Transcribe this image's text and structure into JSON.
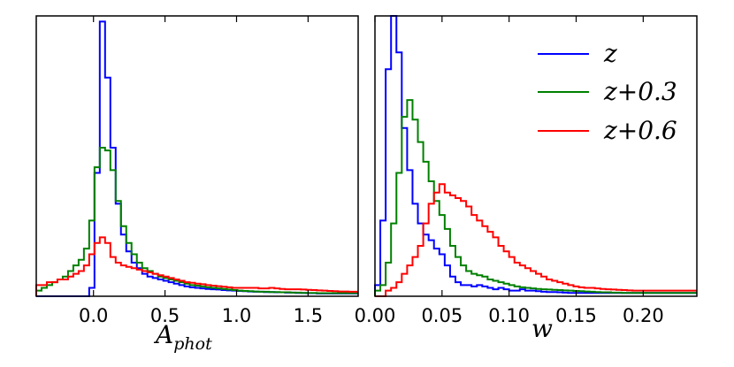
{
  "chart_data": [
    {
      "type": "histogram",
      "panel": "left",
      "xlabel": "A",
      "xlabel_sub": "phot",
      "ylabel": "",
      "xlim": [
        -0.4,
        1.85
      ],
      "ylim": [
        0,
        1.0
      ],
      "xticks": [
        "0.0",
        "0.5",
        "1.0",
        "1.5"
      ],
      "xtick_values": [
        0.0,
        0.5,
        1.0,
        1.5
      ],
      "bin_start": -0.4,
      "bin_width": 0.037,
      "series": [
        {
          "name": "z",
          "color": "#0000ff",
          "values": [
            0,
            0,
            0,
            0,
            0,
            0,
            0,
            0,
            0,
            0,
            0.03,
            0.44,
            0.98,
            0.78,
            0.53,
            0.33,
            0.22,
            0.16,
            0.12,
            0.1,
            0.08,
            0.07,
            0.065,
            0.06,
            0.055,
            0.05,
            0.045,
            0.04,
            0.035,
            0.032,
            0.03,
            0.028,
            0.026,
            0.025,
            0.024,
            0.022,
            0.021,
            0.02,
            0.019,
            0.018,
            0.017,
            0.016,
            0.016,
            0.015,
            0.015,
            0.014,
            0.014,
            0.013,
            0.013,
            0.012,
            0.012,
            0.011,
            0.011,
            0.01,
            0.01,
            0.01,
            0.01,
            0.01,
            0.01,
            0.01,
            0.01
          ]
        },
        {
          "name": "z+0.3",
          "color": "#008000",
          "values": [
            0.02,
            0.03,
            0.04,
            0.05,
            0.06,
            0.07,
            0.09,
            0.11,
            0.13,
            0.17,
            0.27,
            0.46,
            0.53,
            0.52,
            0.45,
            0.34,
            0.25,
            0.19,
            0.15,
            0.12,
            0.1,
            0.09,
            0.08,
            0.07,
            0.065,
            0.06,
            0.055,
            0.05,
            0.045,
            0.04,
            0.038,
            0.035,
            0.032,
            0.03,
            0.028,
            0.026,
            0.024,
            0.022,
            0.02,
            0.019,
            0.018,
            0.017,
            0.016,
            0.016,
            0.015,
            0.015,
            0.014,
            0.014,
            0.013,
            0.013,
            0.012,
            0.012,
            0.012,
            0.011,
            0.011,
            0.011,
            0.011,
            0.011,
            0.011,
            0.011,
            0.011
          ]
        },
        {
          "name": "z+0.6",
          "color": "#ff0000",
          "values": [
            0.04,
            0.04,
            0.05,
            0.05,
            0.06,
            0.06,
            0.07,
            0.08,
            0.09,
            0.11,
            0.15,
            0.19,
            0.21,
            0.19,
            0.14,
            0.12,
            0.11,
            0.105,
            0.1,
            0.095,
            0.09,
            0.085,
            0.08,
            0.075,
            0.07,
            0.065,
            0.06,
            0.055,
            0.05,
            0.048,
            0.045,
            0.043,
            0.04,
            0.038,
            0.036,
            0.034,
            0.032,
            0.03,
            0.03,
            0.03,
            0.03,
            0.03,
            0.028,
            0.028,
            0.03,
            0.028,
            0.026,
            0.025,
            0.025,
            0.025,
            0.024,
            0.023,
            0.022,
            0.021,
            0.02,
            0.019,
            0.018,
            0.017,
            0.017,
            0.016,
            0.016
          ]
        }
      ]
    },
    {
      "type": "histogram",
      "panel": "right",
      "xlabel": "w",
      "ylabel": "",
      "xlim": [
        0.0,
        0.24
      ],
      "ylim": [
        0,
        1.0
      ],
      "xticks": [
        "0.00",
        "0.05",
        "0.10",
        "0.15",
        "0.20"
      ],
      "xtick_values": [
        0.0,
        0.05,
        0.1,
        0.15,
        0.2
      ],
      "legend": {
        "position": "upper right",
        "labels": [
          "z",
          "z+0.3",
          "z+0.6"
        ]
      },
      "bin_start": 0.0,
      "bin_width": 0.004,
      "series": [
        {
          "name": "z",
          "color": "#0000ff",
          "values": [
            0.04,
            0.27,
            0.81,
            1.0,
            0.87,
            0.6,
            0.45,
            0.33,
            0.26,
            0.22,
            0.2,
            0.17,
            0.15,
            0.11,
            0.07,
            0.05,
            0.04,
            0.04,
            0.035,
            0.04,
            0.035,
            0.03,
            0.025,
            0.03,
            0.025,
            0.02,
            0.02,
            0.025,
            0.02,
            0.02,
            0.018,
            0.016,
            0.015,
            0.015,
            0.014,
            0.013,
            0.012,
            0.012,
            0.012,
            0.012,
            0.012,
            0.012,
            0.012,
            0.012,
            0.012,
            0.012,
            0.012,
            0.012,
            0.012,
            0.012,
            0.012,
            0.012,
            0.012,
            0.012,
            0.012,
            0.012,
            0.012,
            0.012,
            0.012,
            0.012
          ]
        },
        {
          "name": "z+0.3",
          "color": "#008000",
          "values": [
            0.02,
            0.04,
            0.12,
            0.26,
            0.44,
            0.64,
            0.7,
            0.63,
            0.55,
            0.48,
            0.41,
            0.34,
            0.29,
            0.24,
            0.18,
            0.14,
            0.11,
            0.09,
            0.08,
            0.075,
            0.07,
            0.06,
            0.055,
            0.05,
            0.045,
            0.04,
            0.035,
            0.032,
            0.03,
            0.028,
            0.026,
            0.025,
            0.024,
            0.023,
            0.022,
            0.021,
            0.02,
            0.019,
            0.018,
            0.017,
            0.016,
            0.015,
            0.014,
            0.014,
            0.013,
            0.013,
            0.012,
            0.012,
            0.012,
            0.012,
            0.012,
            0.012,
            0.012,
            0.012,
            0.012,
            0.012,
            0.012,
            0.012,
            0.012,
            0.012
          ]
        },
        {
          "name": "z+0.6",
          "color": "#ff0000",
          "values": [
            0,
            0,
            0.02,
            0.03,
            0.05,
            0.08,
            0.11,
            0.14,
            0.18,
            0.26,
            0.33,
            0.37,
            0.4,
            0.37,
            0.36,
            0.35,
            0.34,
            0.32,
            0.29,
            0.27,
            0.25,
            0.23,
            0.21,
            0.18,
            0.16,
            0.14,
            0.12,
            0.11,
            0.1,
            0.09,
            0.08,
            0.07,
            0.06,
            0.055,
            0.05,
            0.045,
            0.04,
            0.035,
            0.032,
            0.03,
            0.03,
            0.028,
            0.026,
            0.025,
            0.024,
            0.023,
            0.022,
            0.021,
            0.02,
            0.02,
            0.02,
            0.02,
            0.02,
            0.02,
            0.02,
            0.02,
            0.02,
            0.02,
            0.02,
            0.02
          ]
        }
      ]
    }
  ]
}
